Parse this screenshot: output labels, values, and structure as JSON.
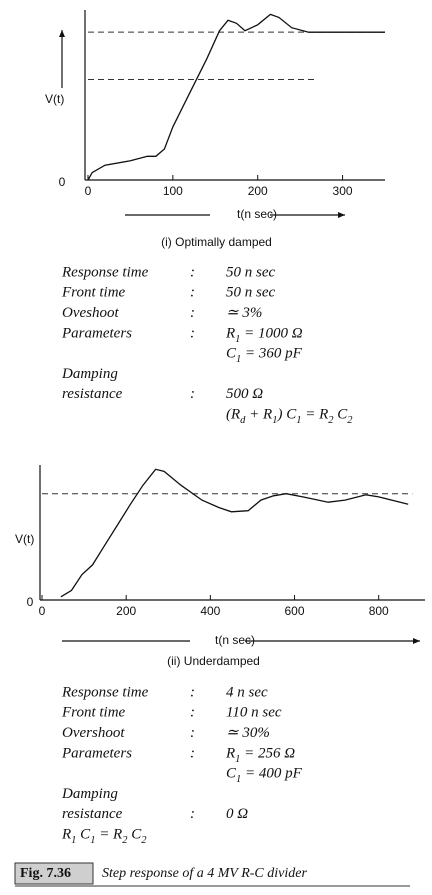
{
  "chart_data": [
    {
      "type": "line",
      "y_label": "V(t)",
      "x_label": "t(n sec)",
      "subtitle": "(i) Optimally damped",
      "x": [
        0,
        5,
        20,
        50,
        70,
        80,
        90,
        100,
        120,
        140,
        155,
        165,
        175,
        185,
        200,
        215,
        225,
        240,
        260,
        300,
        350
      ],
      "values": [
        0,
        0.05,
        0.1,
        0.13,
        0.16,
        0.16,
        0.21,
        0.36,
        0.59,
        0.82,
        1.01,
        1.08,
        1.06,
        1.01,
        1.05,
        1.12,
        1.1,
        1.03,
        1.0,
        1.0,
        1.0
      ],
      "color": "#111111",
      "xlim": [
        0,
        350
      ],
      "ylim": [
        0,
        1.15
      ],
      "xticks": [
        0,
        100,
        200,
        300
      ],
      "yticks": [
        0
      ],
      "hlines": [
        {
          "value": 1.0,
          "xmax": 350
        },
        {
          "value": 0.68,
          "xmax": 267
        }
      ]
    },
    {
      "type": "line",
      "y_label": "V(t)",
      "x_label": "t(n sec)",
      "subtitle": "(ii) Underdamped",
      "x": [
        45,
        70,
        95,
        120,
        150,
        180,
        210,
        240,
        270,
        290,
        330,
        380,
        420,
        450,
        490,
        520,
        550,
        580,
        620,
        680,
        720,
        770,
        800,
        870
      ],
      "values": [
        0.03,
        0.09,
        0.24,
        0.33,
        0.52,
        0.71,
        0.9,
        1.08,
        1.23,
        1.21,
        1.08,
        0.94,
        0.87,
        0.83,
        0.84,
        0.94,
        0.98,
        1.0,
        0.97,
        0.92,
        0.94,
        0.99,
        0.97,
        0.9
      ],
      "color": "#111111",
      "xlim": [
        0,
        910
      ],
      "ylim": [
        0,
        1.27
      ],
      "xticks": [
        0,
        200,
        400,
        600,
        800
      ],
      "yticks": [
        0
      ],
      "hlines": [
        {
          "value": 1.0,
          "xmax": 880
        }
      ]
    }
  ],
  "specs": [
    {
      "separator": ":",
      "rows": [
        {
          "label": [
            "Response time"
          ],
          "value": [
            "50 n sec"
          ]
        },
        {
          "label": [
            "Front time"
          ],
          "value": [
            "50 n sec"
          ]
        },
        {
          "label": [
            "Oveshoot"
          ],
          "value": [
            "≃ 3%"
          ]
        },
        {
          "label": [
            "Parameters"
          ],
          "value": [
            "R1 = 1000 Ω",
            "C1 = 360 pF"
          ]
        },
        {
          "label": [
            "Damping",
            "resistance"
          ],
          "value": [
            "500 Ω",
            "(Rd + R1) C1 = R2 C2"
          ]
        }
      ]
    },
    {
      "separator": ":",
      "rows": [
        {
          "label": [
            "Response time"
          ],
          "value": [
            "4 n sec"
          ]
        },
        {
          "label": [
            "Front time"
          ],
          "value": [
            "110 n sec"
          ]
        },
        {
          "label": [
            "Overshoot"
          ],
          "value": [
            "≃ 30%"
          ]
        },
        {
          "label": [
            "Parameters"
          ],
          "value": [
            "R1 = 256 Ω",
            "C1 = 400 pF"
          ]
        },
        {
          "label": [
            "Damping",
            "resistance"
          ],
          "value": [
            "0 Ω"
          ]
        }
      ],
      "note": "R1 C1 = R2 C2"
    }
  ],
  "caption": {
    "number": "Fig. 7.36",
    "text": "Step response of a 4 MV R-C divider"
  }
}
